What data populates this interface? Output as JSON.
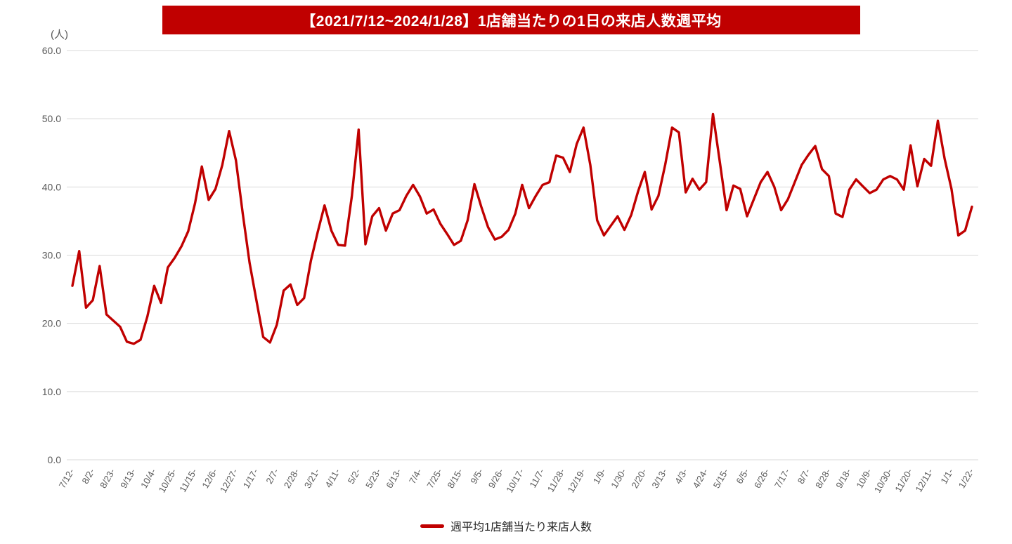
{
  "title": {
    "text": "【2021/7/12~2024/1/28】1店舗当たりの1日の来店人数週平均",
    "background": "#c00000",
    "color": "#ffffff"
  },
  "y_axis": {
    "unit": "(人)",
    "ticks": [
      "0.0",
      "10.0",
      "20.0",
      "30.0",
      "40.0",
      "50.0",
      "60.0"
    ]
  },
  "legend": {
    "label": "週平均1店舗当たり来店人数",
    "color": "#c00000"
  },
  "chart_data": {
    "type": "line",
    "title": "【2021/7/12~2024/1/28】1店舗当たりの1日の来店人数週平均",
    "ylabel": "(人)",
    "ylim": [
      0,
      60
    ],
    "y_tick_step": 10,
    "grid": "horizontal",
    "grid_color": "#d9d9d9",
    "legend_position": "bottom",
    "x_tick_interval_weeks": 3,
    "x_tick_labels": [
      "7/12-",
      "8/2-",
      "8/23-",
      "9/13-",
      "10/4-",
      "10/25-",
      "11/15-",
      "12/6-",
      "12/27-",
      "1/17-",
      "2/7-",
      "2/28-",
      "3/21-",
      "4/11-",
      "5/2-",
      "5/23-",
      "6/13-",
      "7/4-",
      "7/25-",
      "8/15-",
      "9/5-",
      "9/26-",
      "10/17-",
      "11/7-",
      "11/28-",
      "12/19-",
      "1/9-",
      "1/30-",
      "2/20-",
      "3/13-",
      "4/3-",
      "4/24-",
      "5/15-",
      "6/5-",
      "6/26-",
      "7/17-",
      "8/7-",
      "8/28-",
      "9/18-",
      "10/9-",
      "10/30-",
      "11/20-",
      "12/11-",
      "1/1-",
      "1/22-"
    ],
    "series": [
      {
        "name": "週平均1店舗当たり来店人数",
        "color": "#c00000",
        "values": [
          25.5,
          30.6,
          22.3,
          23.4,
          28.4,
          21.3,
          20.4,
          19.5,
          17.3,
          17.0,
          17.6,
          21.0,
          25.5,
          23.0,
          28.2,
          29.6,
          31.3,
          33.5,
          37.6,
          43.0,
          38.1,
          39.7,
          43.2,
          48.2,
          43.9,
          36.1,
          28.9,
          23.4,
          18.0,
          17.2,
          19.8,
          24.8,
          25.7,
          22.7,
          23.7,
          29.2,
          33.4,
          37.3,
          33.6,
          31.5,
          31.4,
          38.6,
          48.4,
          31.6,
          35.7,
          36.9,
          33.6,
          36.1,
          36.6,
          38.7,
          40.3,
          38.6,
          36.1,
          36.7,
          34.6,
          33.1,
          31.5,
          32.1,
          35.1,
          40.4,
          37.1,
          34.1,
          32.3,
          32.7,
          33.7,
          36.1,
          40.3,
          36.9,
          38.7,
          40.3,
          40.7,
          44.6,
          44.3,
          42.2,
          46.3,
          48.7,
          43.2,
          35.1,
          32.9,
          34.3,
          35.7,
          33.7,
          35.9,
          39.3,
          42.2,
          36.7,
          38.7,
          43.3,
          48.7,
          48.0,
          39.2,
          41.2,
          39.6,
          40.7,
          50.7,
          43.7,
          36.6,
          40.2,
          39.7,
          35.7,
          38.2,
          40.7,
          42.2,
          40.0,
          36.6,
          38.2,
          40.7,
          43.2,
          44.7,
          46.0,
          42.6,
          41.6,
          36.1,
          35.6,
          39.6,
          41.1,
          40.1,
          39.1,
          39.6,
          41.1,
          41.6,
          41.1,
          39.6,
          46.1,
          40.1,
          44.1,
          43.1,
          49.7,
          44.1,
          39.7,
          32.9,
          33.6,
          37.1
        ]
      }
    ]
  }
}
